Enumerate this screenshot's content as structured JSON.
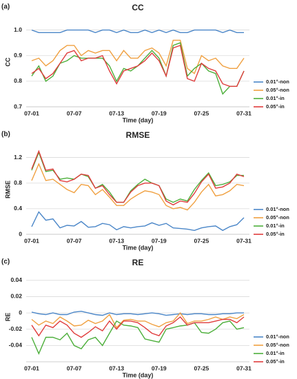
{
  "chart_data": [
    {
      "type": "line",
      "panel_label": "(a)",
      "title": "CC",
      "x_label": "Time (day)",
      "y_label": "CC",
      "categories": [
        "07-01",
        null,
        null,
        null,
        null,
        null,
        "07-07",
        null,
        null,
        null,
        null,
        null,
        "07-13",
        null,
        null,
        null,
        null,
        null,
        "07-19",
        null,
        null,
        null,
        null,
        null,
        "07-25",
        null,
        null,
        null,
        null,
        null,
        "07-31"
      ],
      "ylim": [
        0.7,
        1.05
      ],
      "yticks": [
        {
          "value": 0.7,
          "label": "0.7"
        },
        {
          "value": 0.8,
          "label": "0.8"
        },
        {
          "value": 0.9,
          "label": "0.9"
        },
        {
          "value": 1.0,
          "label": "1.0"
        }
      ],
      "grid": true,
      "legend": "right",
      "series": [
        {
          "name": "0.01°-non",
          "color": "#4a86c8",
          "values": [
            1.0,
            0.99,
            0.99,
            0.99,
            0.99,
            1.0,
            1.0,
            1.0,
            1.0,
            0.99,
            1.0,
            1.0,
            0.99,
            1.0,
            0.99,
            0.99,
            1.0,
            0.99,
            1.0,
            0.99,
            1.0,
            0.99,
            0.99,
            1.0,
            1.0,
            1.0,
            1.0,
            0.99,
            1.0,
            0.99,
            0.99
          ]
        },
        {
          "name": "0.05°-non",
          "color": "#f0a040",
          "values": [
            0.88,
            0.89,
            0.86,
            0.88,
            0.92,
            0.94,
            0.94,
            0.9,
            0.92,
            0.91,
            0.92,
            0.92,
            0.88,
            0.92,
            0.89,
            0.89,
            0.92,
            0.93,
            0.91,
            0.86,
            0.96,
            0.96,
            0.85,
            0.83,
            0.9,
            0.88,
            0.89,
            0.86,
            0.85,
            0.85,
            0.89
          ]
        },
        {
          "name": "0.01°-in",
          "color": "#4caf3a",
          "values": [
            0.82,
            0.86,
            0.8,
            0.82,
            0.87,
            0.88,
            0.9,
            0.89,
            0.89,
            0.89,
            0.89,
            0.86,
            0.8,
            0.85,
            0.84,
            0.86,
            0.89,
            0.92,
            0.89,
            0.82,
            0.94,
            0.95,
            0.82,
            0.85,
            0.87,
            0.84,
            0.83,
            0.75,
            0.78,
            0.78,
            0.84
          ]
        },
        {
          "name": "0.05°-in",
          "color": "#e03c3c",
          "values": [
            0.83,
            0.85,
            0.81,
            0.83,
            0.87,
            0.91,
            0.92,
            0.88,
            0.89,
            0.89,
            0.9,
            0.84,
            0.79,
            0.84,
            0.85,
            0.86,
            0.88,
            0.91,
            0.88,
            0.82,
            0.93,
            0.94,
            0.81,
            0.8,
            0.87,
            0.85,
            0.84,
            0.79,
            0.78,
            0.78,
            0.84
          ]
        }
      ]
    },
    {
      "type": "line",
      "panel_label": "(b)",
      "title": "RMSE",
      "x_label": "Time (day)",
      "y_label": "RMSE",
      "categories": [
        "07-01",
        null,
        null,
        null,
        null,
        null,
        "07-07",
        null,
        null,
        null,
        null,
        null,
        "07-13",
        null,
        null,
        null,
        null,
        null,
        "07-19",
        null,
        null,
        null,
        null,
        null,
        "07-25",
        null,
        null,
        null,
        null,
        null,
        "07-31"
      ],
      "ylim": [
        0,
        1.4
      ],
      "yticks": [
        0,
        0.4,
        0.8,
        1.2
      ],
      "grid": true,
      "legend": "right",
      "series": [
        {
          "name": "0.01°-non",
          "color": "#4a86c8",
          "values": [
            0.12,
            0.35,
            0.22,
            0.24,
            0.1,
            0.14,
            0.13,
            0.2,
            0.11,
            0.12,
            0.17,
            0.15,
            0.07,
            0.12,
            0.1,
            0.12,
            0.13,
            0.18,
            0.14,
            0.17,
            0.1,
            0.09,
            0.08,
            0.06,
            0.1,
            0.12,
            0.13,
            0.06,
            0.12,
            0.15,
            0.26
          ]
        },
        {
          "name": "0.05°-non",
          "color": "#f0a040",
          "values": [
            0.84,
            1.1,
            0.84,
            0.86,
            0.78,
            0.7,
            0.65,
            0.78,
            0.76,
            0.62,
            0.7,
            0.58,
            0.45,
            0.45,
            0.55,
            0.62,
            0.68,
            0.66,
            0.62,
            0.45,
            0.4,
            0.42,
            0.38,
            0.5,
            0.66,
            0.78,
            0.6,
            0.62,
            0.68,
            0.78,
            0.76
          ]
        },
        {
          "name": "0.01°-in",
          "color": "#4caf3a",
          "values": [
            1.0,
            1.28,
            0.98,
            1.0,
            0.86,
            0.88,
            0.86,
            0.94,
            0.9,
            0.72,
            0.78,
            0.66,
            0.5,
            0.5,
            0.68,
            0.78,
            0.86,
            0.8,
            0.76,
            0.55,
            0.5,
            0.55,
            0.52,
            0.7,
            0.84,
            0.96,
            0.76,
            0.78,
            0.82,
            0.92,
            0.92
          ]
        },
        {
          "name": "0.05°-in",
          "color": "#e03c3c",
          "values": [
            1.02,
            1.3,
            1.0,
            1.02,
            0.84,
            0.82,
            0.86,
            0.94,
            0.92,
            0.72,
            0.76,
            0.62,
            0.5,
            0.5,
            0.66,
            0.76,
            0.8,
            0.8,
            0.76,
            0.52,
            0.46,
            0.52,
            0.5,
            0.64,
            0.82,
            0.94,
            0.72,
            0.74,
            0.8,
            0.94,
            0.9
          ]
        }
      ]
    },
    {
      "type": "line",
      "panel_label": "(c)",
      "title": "RE",
      "x_label": "Time (day)",
      "y_label": "RE",
      "categories": [
        "07-01",
        null,
        null,
        null,
        null,
        null,
        "07-07",
        null,
        null,
        null,
        null,
        null,
        "07-13",
        null,
        null,
        null,
        null,
        null,
        "07-19",
        null,
        null,
        null,
        null,
        null,
        "07-25",
        null,
        null,
        null,
        null,
        null,
        "07-31"
      ],
      "ylim": [
        -0.06,
        0.05
      ],
      "yticks": [
        -0.04,
        -0.02,
        0,
        0.02,
        0.04
      ],
      "grid": true,
      "legend": "right",
      "series": [
        {
          "name": "0.01°-non",
          "color": "#4a86c8",
          "values": [
            0.001,
            -0.001,
            -0.002,
            0,
            -0.002,
            -0.002,
            0.001,
            0.002,
            0,
            -0.002,
            -0.003,
            0,
            -0.002,
            -0.001,
            -0.001,
            -0.002,
            -0.001,
            0,
            -0.001,
            -0.003,
            -0.002,
            -0.001,
            -0.002,
            -0.001,
            -0.001,
            -0.002,
            -0.002,
            -0.001,
            -0.001,
            0,
            0
          ]
        },
        {
          "name": "0.05°-non",
          "color": "#f0a040",
          "values": [
            -0.008,
            -0.015,
            -0.01,
            -0.013,
            -0.005,
            -0.01,
            -0.016,
            -0.015,
            -0.009,
            -0.013,
            -0.01,
            -0.002,
            -0.018,
            -0.009,
            -0.008,
            -0.01,
            -0.01,
            -0.014,
            -0.017,
            -0.012,
            -0.01,
            0,
            -0.013,
            -0.01,
            -0.01,
            -0.008,
            -0.005,
            -0.008,
            -0.005,
            -0.007,
            -0.002
          ]
        },
        {
          "name": "0.01°-in",
          "color": "#4caf3a",
          "values": [
            -0.03,
            -0.05,
            -0.03,
            -0.03,
            -0.033,
            -0.025,
            -0.04,
            -0.044,
            -0.033,
            -0.03,
            -0.04,
            -0.025,
            -0.01,
            -0.015,
            -0.016,
            -0.018,
            -0.032,
            -0.034,
            -0.036,
            -0.02,
            -0.018,
            -0.016,
            -0.015,
            -0.012,
            -0.024,
            -0.025,
            -0.02,
            -0.012,
            -0.01,
            -0.02,
            -0.018
          ]
        },
        {
          "name": "0.05°-in",
          "color": "#e03c3c",
          "values": [
            -0.015,
            -0.028,
            -0.015,
            -0.018,
            -0.01,
            -0.015,
            -0.025,
            -0.03,
            -0.024,
            -0.017,
            -0.022,
            -0.01,
            -0.02,
            -0.01,
            -0.01,
            -0.012,
            -0.018,
            -0.025,
            -0.028,
            -0.016,
            -0.012,
            -0.005,
            -0.015,
            -0.012,
            -0.012,
            -0.012,
            -0.01,
            -0.008,
            -0.008,
            -0.012,
            -0.005
          ]
        }
      ]
    }
  ]
}
